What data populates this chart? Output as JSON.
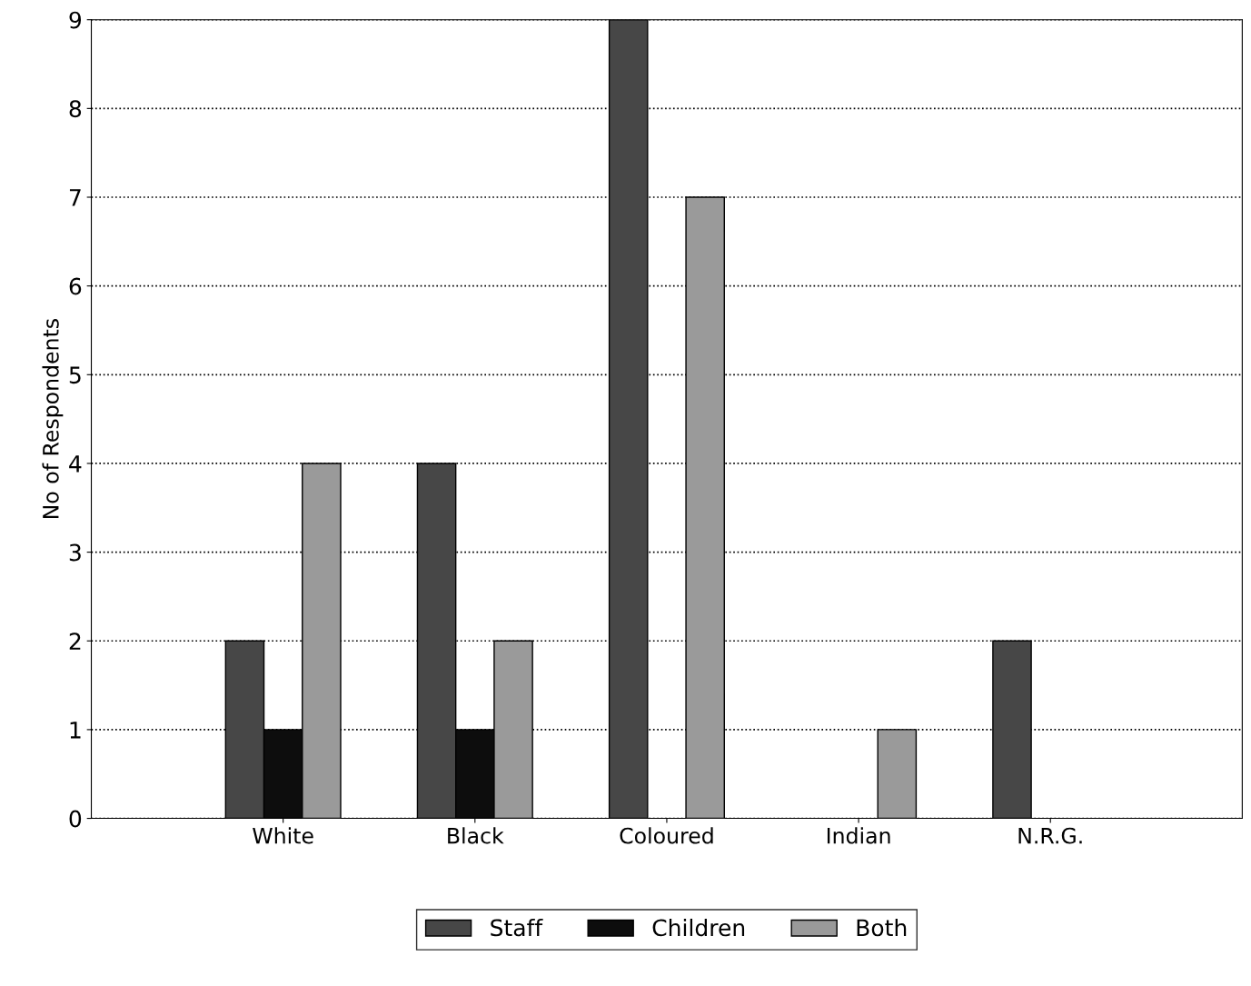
{
  "chart_data": {
    "type": "bar",
    "ylabel": "No of Respondents",
    "categories": [
      "White",
      "Black",
      "Coloured",
      "Indian",
      "N.R.G."
    ],
    "series": [
      {
        "name": "Staff",
        "color": "#474747",
        "values": [
          2,
          4,
          9,
          0,
          2
        ]
      },
      {
        "name": "Children",
        "color": "#0d0d0d",
        "values": [
          1,
          1,
          0,
          0,
          0
        ]
      },
      {
        "name": "Both",
        "color": "#9a9a9a",
        "values": [
          4,
          2,
          7,
          1,
          0
        ]
      }
    ],
    "ylim": [
      0,
      9
    ],
    "yticks": [
      0,
      1,
      2,
      3,
      4,
      5,
      6,
      7,
      8,
      9
    ],
    "grid": "y",
    "legend": "bottom"
  }
}
